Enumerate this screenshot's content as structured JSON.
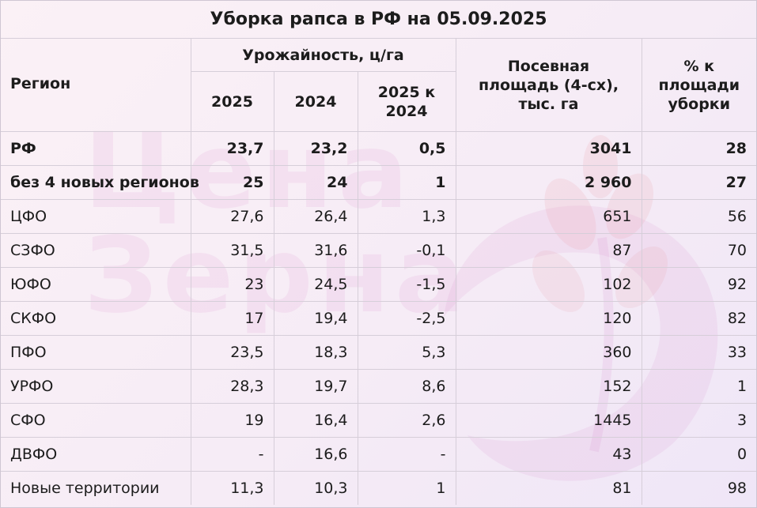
{
  "title": "Уборка рапса в РФ на 05.09.2025",
  "headers": {
    "region": "Регион",
    "yield_group": "Урожайность, ц/га",
    "year_2025": "2025",
    "year_2024": "2024",
    "diff": "2025 к 2024",
    "area": "Посевная площадь (4-сх), тыс. га",
    "pct": "% к площади уборки"
  },
  "rows": [
    {
      "region": "РФ",
      "y2025": "23,7",
      "y2024": "23,2",
      "diff": "0,5",
      "area": "3041",
      "pct": "28",
      "bold": true
    },
    {
      "region": "без 4 новых регионов",
      "y2025": "25",
      "y2024": "24",
      "diff": "1",
      "area": "2 960",
      "pct": "27",
      "bold": true
    },
    {
      "region": "ЦФО",
      "y2025": "27,6",
      "y2024": "26,4",
      "diff": "1,3",
      "area": "651",
      "pct": "56"
    },
    {
      "region": "СЗФО",
      "y2025": "31,5",
      "y2024": "31,6",
      "diff": "-0,1",
      "area": "87",
      "pct": "70"
    },
    {
      "region": "ЮФО",
      "y2025": "23",
      "y2024": "24,5",
      "diff": "-1,5",
      "area": "102",
      "pct": "92"
    },
    {
      "region": "СКФО",
      "y2025": "17",
      "y2024": "19,4",
      "diff": "-2,5",
      "area": "120",
      "pct": "82"
    },
    {
      "region": "ПФО",
      "y2025": "23,5",
      "y2024": "18,3",
      "diff": "5,3",
      "area": "360",
      "pct": "33"
    },
    {
      "region": "УРФО",
      "y2025": "28,3",
      "y2024": "19,7",
      "diff": "8,6",
      "area": "152",
      "pct": "1"
    },
    {
      "region": "СФО",
      "y2025": "19",
      "y2024": "16,4",
      "diff": "2,6",
      "area": "1445",
      "pct": "3"
    },
    {
      "region": "ДВФО",
      "y2025": "-",
      "y2024": "16,6",
      "diff": "-",
      "area": "43",
      "pct": "0"
    },
    {
      "region": "Новые территории",
      "y2025": "11,3",
      "y2024": "10,3",
      "diff": "1",
      "area": "81",
      "pct": "98"
    }
  ],
  "watermark": {
    "line1": "Цена",
    "line2": "Зерна",
    "logo": "wheat-leaf-icon",
    "color": "#d680c8"
  }
}
